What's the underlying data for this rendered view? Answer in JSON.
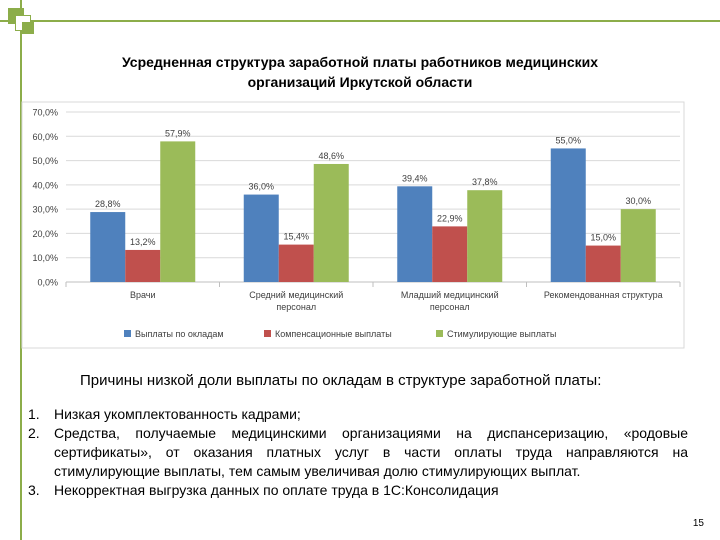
{
  "slide": {
    "title_line1": "Усредненная структура заработной платы работников медицинских",
    "title_line2": "организаций Иркутской области",
    "reasons_heading": "Причины низкой доли выплаты по окладам в структуре заработной платы:",
    "reasons": [
      {
        "num": "1.",
        "text": "Низкая укомплектованность кадрами;"
      },
      {
        "num": "2.",
        "text": "Средства, получаемые медицинскими организациями на диспансеризацию, «родовые сертификаты», от оказания платных услуг в части  оплаты труда направляются на стимулирующие выплаты, тем самым увеличивая долю стимулирующих выплат."
      },
      {
        "num": "3.",
        "text": "Некорректная выгрузка данных по оплате труда в 1С:Консолидация"
      }
    ],
    "page_number": "15",
    "accent_color": "#8cad4a"
  },
  "chart_data": {
    "type": "bar",
    "title": "Усредненная структура заработной платы работников медицинских организаций Иркутской области",
    "categories": [
      [
        "Врачи"
      ],
      [
        "Средний медицинский",
        "персонал"
      ],
      [
        "Младший медицинский",
        "персонал"
      ],
      [
        "Рекомендованная структура"
      ]
    ],
    "series": [
      {
        "name": "Выплаты по окладам",
        "color": "#4f81bd",
        "values": [
          28.8,
          36.0,
          39.4,
          55.0
        ]
      },
      {
        "name": "Компенсационные выплаты",
        "color": "#c0504d",
        "values": [
          13.2,
          15.4,
          22.9,
          15.0
        ]
      },
      {
        "name": "Стимулирующие выплаты",
        "color": "#9bbb59",
        "values": [
          57.9,
          48.6,
          37.8,
          30.0
        ]
      }
    ],
    "ylim": [
      0,
      70
    ],
    "yticks": [
      0,
      10,
      20,
      30,
      40,
      50,
      60,
      70
    ],
    "grid": true,
    "legend_position": "bottom",
    "value_format": "percent-1dp-comma"
  }
}
